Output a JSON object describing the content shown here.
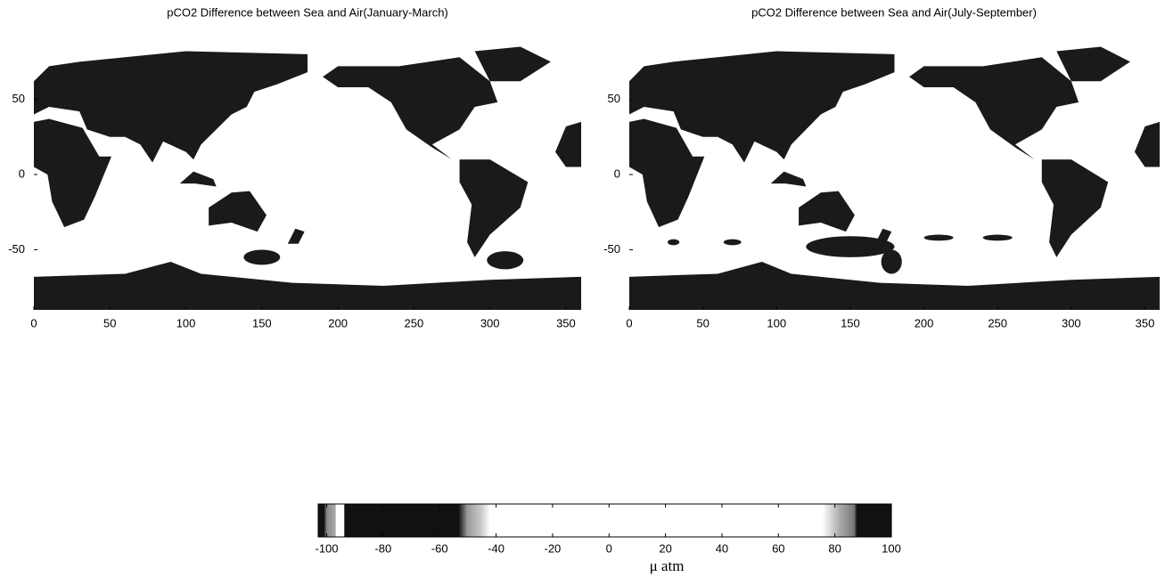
{
  "chart_data": [
    {
      "type": "map",
      "title": "pCO2 Difference between Sea and Air(January-March)",
      "xlim": [
        0,
        360
      ],
      "ylim": [
        -90,
        90
      ],
      "xticks": [
        0,
        50,
        100,
        150,
        200,
        250,
        300,
        350
      ],
      "yticks": [
        -50,
        0,
        50
      ]
    },
    {
      "type": "map",
      "title": "pCO2 Difference between Sea and Air(July-September)",
      "xlim": [
        0,
        360
      ],
      "ylim": [
        -90,
        90
      ],
      "xticks": [
        0,
        50,
        100,
        150,
        200,
        250,
        300,
        350
      ],
      "yticks": [
        -50,
        0,
        50
      ]
    },
    {
      "type": "colorbar",
      "label": "μ atm",
      "xlim": [
        -103,
        100
      ],
      "xticks": [
        -100,
        -80,
        -60,
        -40,
        -20,
        0,
        20,
        40,
        60,
        80,
        100
      ]
    }
  ]
}
